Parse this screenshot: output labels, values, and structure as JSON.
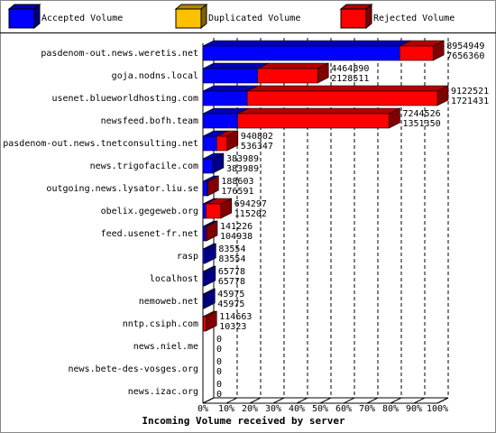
{
  "chart_data": {
    "type": "bar3d-stacked-horizontal",
    "x_label": "Incoming Volume received by server",
    "categories": [
      "pasdenom-out.news.weretis.net",
      "goja.nodns.local",
      "usenet.blueworldhosting.com",
      "newsfeed.bofh.team",
      "pasdenom-out.news.tnetconsulting.net",
      "news.trigofacile.com",
      "outgoing.news.lysator.liu.se",
      "obelix.gegeweb.org",
      "feed.usenet-fr.net",
      "rasp",
      "localhost",
      "nemoweb.net",
      "nntp.csiph.com",
      "news.niel.me",
      "news.bete-des-vosges.org",
      "news.izac.org"
    ],
    "series": [
      {
        "name": "Accepted Volume",
        "color": "#0000ff",
        "values": [
          7656360,
          2128511,
          1721431,
          1351350,
          536347,
          383989,
          176591,
          115202,
          104938,
          83554,
          65778,
          45975,
          10323,
          0,
          0,
          0
        ]
      },
      {
        "name": "Duplicated Volume",
        "color": "#ffc000",
        "values": [
          0,
          0,
          0,
          0,
          0,
          0,
          0,
          0,
          0,
          0,
          0,
          0,
          0,
          0,
          0,
          0
        ]
      },
      {
        "name": "Rejected Volume",
        "color": "#ff0000",
        "values": [
          1298589,
          2336379,
          7401090,
          5893176,
          404455,
          0,
          12012,
          579095,
          36288,
          0,
          0,
          0,
          104340,
          0,
          0,
          0
        ]
      }
    ],
    "totals": [
      8954949,
      4464890,
      9122521,
      7244526,
      940802,
      383989,
      188603,
      694297,
      141226,
      83554,
      65778,
      45975,
      114663,
      0,
      0,
      0
    ],
    "xlim": [
      0,
      9122521
    ],
    "xticks": [
      {
        "value": 0,
        "label": "0%"
      },
      {
        "value": 912252.1,
        "label": "10%"
      },
      {
        "value": 1824504.2,
        "label": "20%"
      },
      {
        "value": 2736756.3,
        "label": "30%"
      },
      {
        "value": 3649008.4,
        "label": "40%"
      },
      {
        "value": 4561260.5,
        "label": "50%"
      },
      {
        "value": 5473512.6,
        "label": "60%"
      },
      {
        "value": 6385764.7,
        "label": "70%"
      },
      {
        "value": 7298016.8,
        "label": "80%"
      },
      {
        "value": 8210268.9,
        "label": "90%"
      },
      {
        "value": 9122521,
        "label": "100%"
      }
    ],
    "grid": true
  }
}
